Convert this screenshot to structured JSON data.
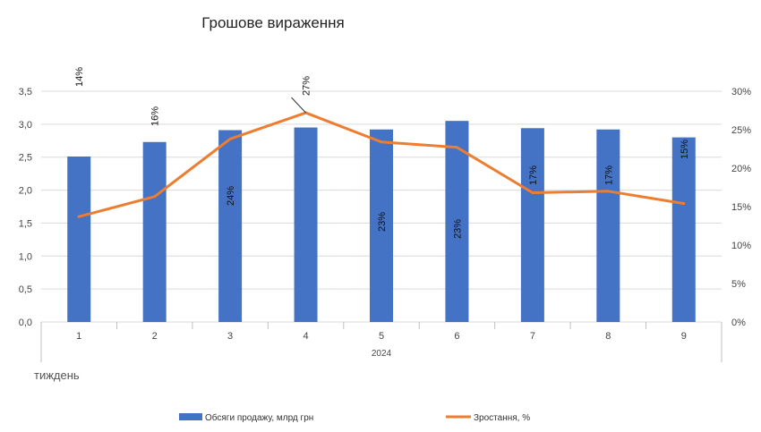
{
  "chart_data": {
    "type": "bar",
    "title": "Грошове вираження",
    "categories": [
      "1",
      "2",
      "3",
      "4",
      "5",
      "6",
      "7",
      "8",
      "9"
    ],
    "group_label": "2024",
    "caption": "тиждень",
    "y_left": {
      "min": 0,
      "max": 3.5,
      "step": 0.5,
      "ticks": [
        "0,0",
        "0,5",
        "1,0",
        "1,5",
        "2,0",
        "2,5",
        "3,0",
        "3,5"
      ]
    },
    "y_right": {
      "min": 0,
      "max": 30,
      "step": 5,
      "ticks": [
        "0%",
        "5%",
        "10%",
        "15%",
        "20%",
        "25%",
        "30%"
      ]
    },
    "series": [
      {
        "name": "Обсяги продажу, млрд грн",
        "type": "bar",
        "axis": "left",
        "color": "#4472C4",
        "values": [
          2.51,
          2.73,
          2.91,
          2.95,
          2.92,
          3.05,
          2.94,
          2.92,
          2.8
        ]
      },
      {
        "name": "Зростання, %",
        "type": "line",
        "axis": "right",
        "color": "#ED7D31",
        "values": [
          13.7,
          16.3,
          23.8,
          27.2,
          23.4,
          22.7,
          16.8,
          17.0,
          15.4
        ],
        "labels": [
          "14%",
          "16%",
          "24%",
          "27%",
          "23%",
          "23%",
          "17%",
          "17%",
          "15%"
        ]
      }
    ],
    "grid": true,
    "legend": "bottom"
  }
}
